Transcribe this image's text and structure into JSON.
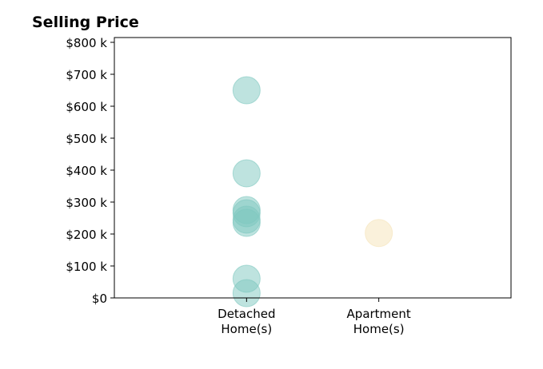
{
  "chart_data": {
    "type": "scatter",
    "title": "Selling Price",
    "xlabel": "",
    "ylabel": "",
    "categories": [
      "Detached\nHome(s)",
      "Apartment\nHome(s)"
    ],
    "xlim": [
      -1,
      2
    ],
    "ylim": [
      0,
      815000
    ],
    "y_ticks": [
      0,
      100000,
      200000,
      300000,
      400000,
      500000,
      600000,
      700000,
      800000
    ],
    "y_tick_labels": [
      "$0",
      "$100 k",
      "$200 k",
      "$300 k",
      "$400 k",
      "$500 k",
      "$600 k",
      "$700 k",
      "$800 k"
    ],
    "grid": false,
    "series": [
      {
        "category": "Detached\nHome(s)",
        "color": "#7ec8c0",
        "values": [
          650000,
          390000,
          275000,
          265000,
          245000,
          235000,
          60000,
          15000
        ]
      },
      {
        "category": "Apartment\nHome(s)",
        "color": "#f5e3b8",
        "values": [
          203000
        ]
      }
    ]
  }
}
